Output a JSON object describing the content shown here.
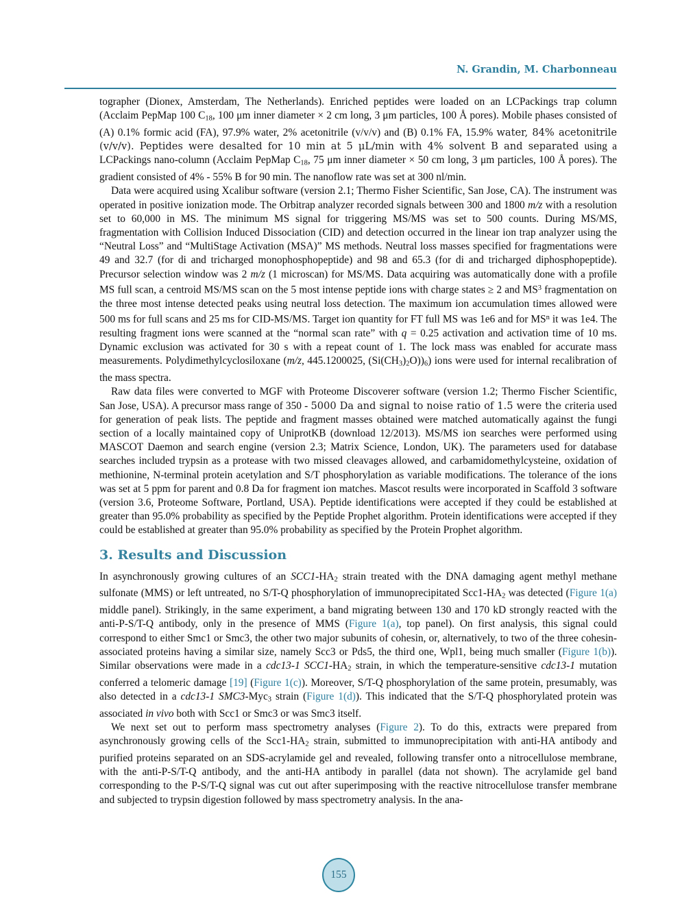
{
  "page": {
    "running_head": "N. Grandin, M. Charbonneau",
    "page_number": "155",
    "accent_color": "#2E7F9E",
    "link_color": "#2E7F9E",
    "badge_fill": "#BEDEE9"
  },
  "section_heading": "3. Results and Discussion",
  "methods_paragraphs": [
    {
      "indent": false,
      "runs": [
        {
          "s": "plain",
          "t": "tographer (Dionex, Amsterdam, The Netherlands). Enriched peptides were loaded on an LCPackings trap column (Acclaim PepMap 100 C"
        },
        {
          "s": "sub",
          "t": "18"
        },
        {
          "s": "plain",
          "t": ", 100 μm inner diameter × 2 cm long, 3 μm particles, 100 Å pores). Mobile phases consisted of (A) 0.1% formic acid (FA), 97.9% water, 2% acetonitrile (v/v/v) and (B) 0.1% FA, 15.9% "
        },
        {
          "s": "alt",
          "t": "water, 84% acetonitrile (v/v/v). Peptides were desalted for 10 min at 5 μL/min with 4% solvent B and separated "
        },
        {
          "s": "plain",
          "t": "using a LCPackings nano-column (Acclaim PepMap C"
        },
        {
          "s": "sub",
          "t": "18"
        },
        {
          "s": "plain",
          "t": ", 75 μm inner diameter × 50 cm long, 3 μm particles, 100 Å pores). The gradient consisted of 4% - 55% B for 90 min. The nanoflow rate was set at 300 nl/min."
        }
      ]
    },
    {
      "indent": true,
      "runs": [
        {
          "s": "plain",
          "t": "Data were acquired using Xcalibur software (version 2.1; Thermo Fisher Scientific, San Jose, CA). The instrument was operated in positive ionization mode. The Orbitrap analyzer recorded signals between 300 and 1800 "
        },
        {
          "s": "i",
          "t": "m/z"
        },
        {
          "s": "plain",
          "t": " with a resolution set to 60,000 in MS. The minimum MS signal for triggering MS/MS was set to 500 counts. During MS/MS, fragmentation with Collision Induced Dissociation (CID) and detection occurred in the linear ion trap analyzer using the “Neutral Loss” and “MultiStage Activation (MSA)” MS methods. Neutral loss masses specified for fragmentations were 49 and 32.7 (for di and tricharged monophosphopeptide) and 98 and 65.3 (for di and tricharged diphosphopeptide). Precursor selection window was 2 "
        },
        {
          "s": "i",
          "t": "m/z"
        },
        {
          "s": "plain",
          "t": " (1 microscan) for MS/MS. Data acquiring was automatically done with a profile MS full scan, a centroid MS/MS scan on the 5 most intense peptide ions with charge states ≥ 2 and MS"
        },
        {
          "s": "sup",
          "t": "3"
        },
        {
          "s": "plain",
          "t": " fragmentation on the three most intense detected peaks using neutral loss detection. The maximum ion accumulation times allowed were 500 ms for full scans and 25 ms for CID-MS/MS. Target ion quantity for FT full MS was 1e6 and for MS"
        },
        {
          "s": "sup",
          "t": "n"
        },
        {
          "s": "plain",
          "t": " it was 1e4. The resulting fragment ions were scanned at the “normal scan rate” with "
        },
        {
          "s": "i",
          "t": "q"
        },
        {
          "s": "plain",
          "t": " = 0.25 activation and activation time of 10 ms. Dynamic exclusion was activated for 30 s with a repeat count of 1. The lock mass was enabled for accurate mass measurements. Polydimethylcyclosiloxane ("
        },
        {
          "s": "i",
          "t": "m/z"
        },
        {
          "s": "plain",
          "t": ", 445.1200025, (Si(CH"
        },
        {
          "s": "sub",
          "t": "3"
        },
        {
          "s": "plain",
          "t": ")"
        },
        {
          "s": "sub",
          "t": "2"
        },
        {
          "s": "plain",
          "t": "O))"
        },
        {
          "s": "sub",
          "t": "6"
        },
        {
          "s": "plain",
          "t": ") ions were used for internal recalibration of the mass spectra."
        }
      ]
    },
    {
      "indent": true,
      "runs": [
        {
          "s": "plain",
          "t": "Raw data files were converted to MGF with Proteome Discoverer software (version 1.2; Thermo Fischer Scientific, San Jose, USA). A precursor mass range of 350 - "
        },
        {
          "s": "alt",
          "t": "5000 Da and signal to noise ratio of 1.5 were the "
        },
        {
          "s": "plain",
          "t": "criteria used for generation of peak lists. The peptide and fragment masses obtained were matched automatically against the fungi section of a locally maintained copy of UniprotKB (download 12/2013). MS/MS ion searches were performed using MASCOT Daemon and search engine (version 2.3; Matrix Science, London, UK). The parameters used for database searches included trypsin as a protease with two missed cleavages allowed, and carbamidomethylcysteine, oxidation of methionine, N-terminal protein acetylation and S/T phosphorylation as variable modifications. The tolerance of the ions was set at 5 ppm for parent and 0.8 Da for fragment ion matches. Mascot results were incorporated in Scaffold 3 software (version 3.6, Proteome Software, Portland, USA). Peptide identifications were accepted if they could be established at greater than 95.0% probability as specified by the Peptide Prophet algorithm. Protein identifications were accepted if they could be established at greater than 95.0% probability as specified by the Protein Prophet algorithm."
        }
      ]
    }
  ],
  "results_paragraphs": [
    {
      "indent": false,
      "runs": [
        {
          "s": "plain",
          "t": "In asynchronously growing cultures of an "
        },
        {
          "s": "i",
          "t": "SCC1"
        },
        {
          "s": "plain",
          "t": "-HA"
        },
        {
          "s": "sub",
          "t": "2"
        },
        {
          "s": "plain",
          "t": " strain treated with the DNA damaging agent methyl methane sulfonate (MMS) or left untreated, no S/T-Q phosphorylation of immunoprecipitated Scc1-HA"
        },
        {
          "s": "sub",
          "t": "2"
        },
        {
          "s": "plain",
          "t": " was detected ("
        },
        {
          "s": "link",
          "t": "Figure 1(a)"
        },
        {
          "s": "plain",
          "t": " middle panel). Strikingly, in the same experiment, a band migrating between 130 and 170 kD strongly reacted with the anti-P-S/T-Q antibody, only in the presence of MMS ("
        },
        {
          "s": "link",
          "t": "Figure 1(a)"
        },
        {
          "s": "plain",
          "t": ", top panel). On first analysis, this signal could correspond to either Smc1 or Smc3, the other two major subunits of cohesin, or, alternatively, to two of the three cohesin-associated proteins having a similar size, namely Scc3 or Pds5, the third one, Wpl1, being much smaller ("
        },
        {
          "s": "link",
          "t": "Figure 1(b)"
        },
        {
          "s": "plain",
          "t": "). Similar observations were made in a "
        },
        {
          "s": "i",
          "t": "cdc13-1 SCC1"
        },
        {
          "s": "plain",
          "t": "-HA"
        },
        {
          "s": "sub",
          "t": "2"
        },
        {
          "s": "plain",
          "t": " strain, in which the temperature-sensitive "
        },
        {
          "s": "i",
          "t": "cdc13-1"
        },
        {
          "s": "plain",
          "t": " mutation conferred a telomeric damage "
        },
        {
          "s": "link",
          "t": "[19]"
        },
        {
          "s": "plain",
          "t": " ("
        },
        {
          "s": "link",
          "t": "Figure 1(c)"
        },
        {
          "s": "plain",
          "t": "). Moreover, S/T-Q phosphorylation of the same protein, presumably, was also detected in a "
        },
        {
          "s": "i",
          "t": "cdc13-1 SMC3"
        },
        {
          "s": "plain",
          "t": "-Myc"
        },
        {
          "s": "sub",
          "t": "3"
        },
        {
          "s": "plain",
          "t": " strain ("
        },
        {
          "s": "link",
          "t": "Figure 1(d)"
        },
        {
          "s": "plain",
          "t": "). This indicated that the S/T-Q phosphorylated protein was associated "
        },
        {
          "s": "i",
          "t": "in vivo"
        },
        {
          "s": "plain",
          "t": " both with Scc1 or Smc3 or was Smc3 itself."
        }
      ]
    },
    {
      "indent": true,
      "runs": [
        {
          "s": "plain",
          "t": "We next set out to perform mass spectrometry analyses ("
        },
        {
          "s": "link",
          "t": "Figure 2"
        },
        {
          "s": "plain",
          "t": "). To do this, extracts were prepared from asynchronously growing cells of the Scc1-HA"
        },
        {
          "s": "sub",
          "t": "2"
        },
        {
          "s": "plain",
          "t": " strain, submitted to immunoprecipitation with anti-HA antibody and purified proteins separated on an SDS-acrylamide gel and revealed, following transfer onto a nitrocellulose membrane, with the anti-P-S/T-Q antibody, and the anti-HA antibody in parallel (data not shown). The acrylamide gel band corresponding to the P-S/T-Q signal was cut out after superimposing with the reactive nitrocellulose transfer membrane and subjected to trypsin digestion followed by mass spectrometry analysis. In the ana-"
        }
      ]
    }
  ]
}
